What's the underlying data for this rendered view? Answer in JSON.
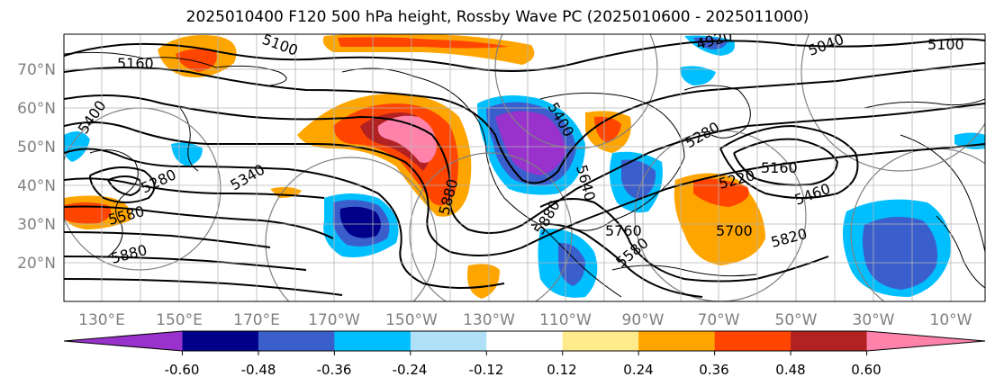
{
  "title": "2025010400 F120 500 hPa height, Rossby Wave PC (2025010600 - 2025011000)",
  "lat_labels": [
    "70°N",
    "60°N",
    "50°N",
    "40°N",
    "30°N",
    "20°N"
  ],
  "lon_labels": [
    "130°E",
    "150°E",
    "170°E",
    "170°W",
    "150°W",
    "130°W",
    "110°W",
    "90°W",
    "70°W",
    "50°W",
    "30°W",
    "10°W"
  ],
  "contour_labels": [
    "5100",
    "5160",
    "5400",
    "5340",
    "5280",
    "5580",
    "5880",
    "4920",
    "5040",
    "5100",
    "5220",
    "5280",
    "5400",
    "5460",
    "5580",
    "5640",
    "5700",
    "5760",
    "5820",
    "5880",
    "5160",
    "5880"
  ],
  "colorbar": {
    "colors": [
      "#9932cc",
      "#00008b",
      "#3a5fcd",
      "#00bfff",
      "#afe0f8",
      "#ffffff",
      "#ffeb8b",
      "#ffa500",
      "#ff4500",
      "#b22222",
      "#ff82ab"
    ],
    "tick_labels": [
      "-0.60",
      "-0.48",
      "-0.36",
      "-0.24",
      "-0.12",
      "0.12",
      "0.24",
      "0.36",
      "0.48",
      "0.60"
    ]
  },
  "colors": {
    "negative_core": "#9932cc",
    "positive_core": "#ff82ab",
    "contour": "#000000",
    "grid": "#b4b4b4",
    "tick_text": "#808080"
  }
}
